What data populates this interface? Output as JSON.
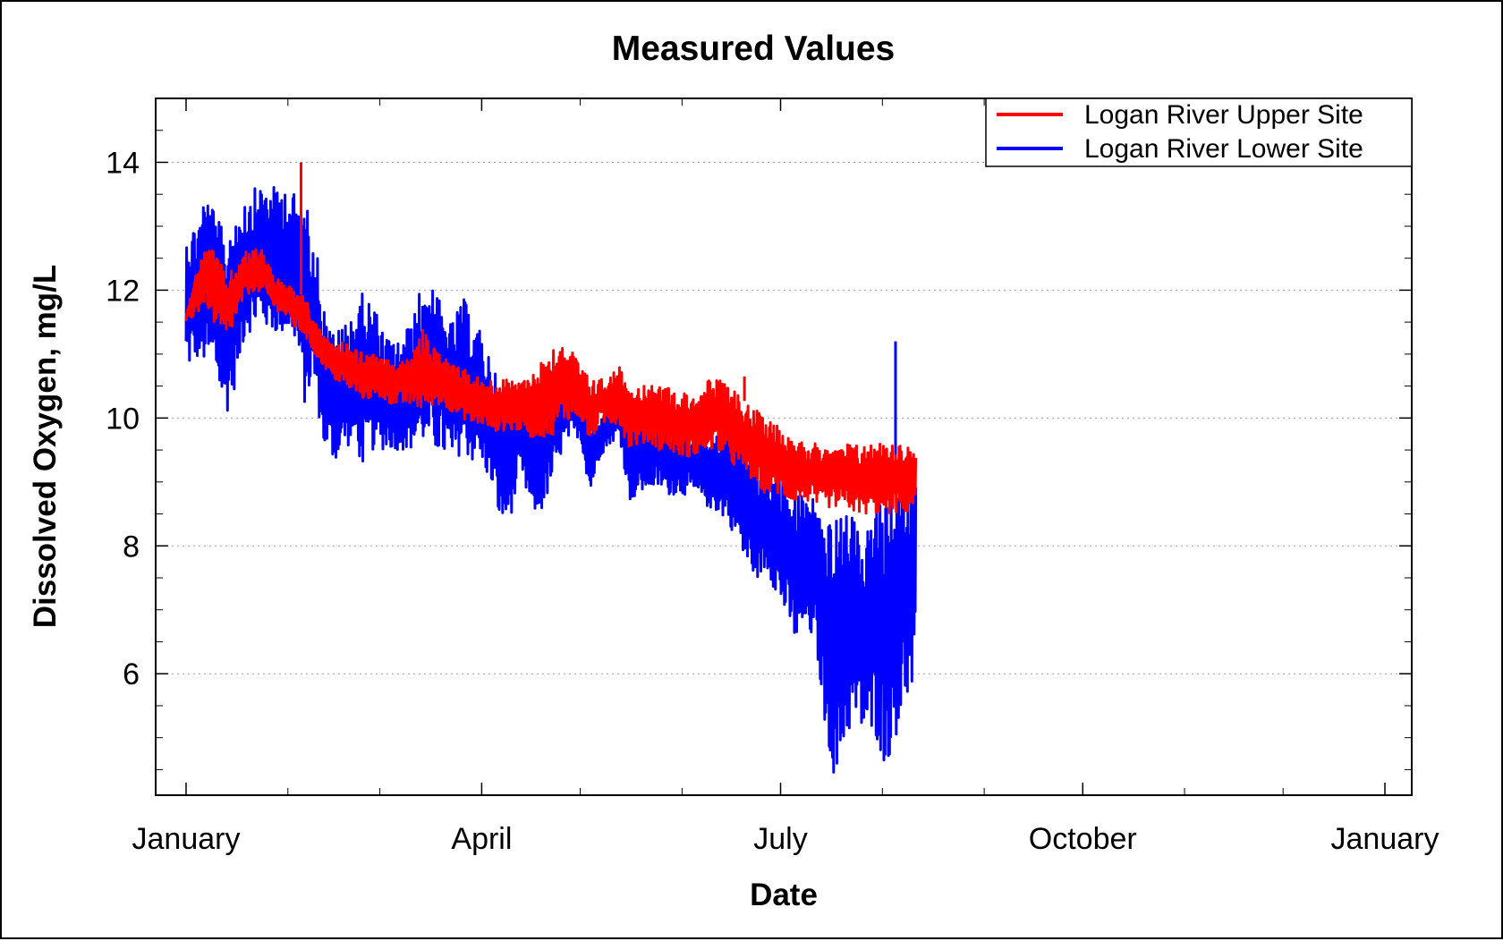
{
  "chart_data": {
    "type": "line",
    "title": "Measured Values",
    "xlabel": "Date",
    "ylabel": "Dissolved Oxygen, mg/L",
    "xlim": [
      "2007-01-01",
      "2008-01-01"
    ],
    "ylim": [
      4.1,
      15.0
    ],
    "x_ticks": [
      {
        "date": "2007-01-01",
        "label": "January"
      },
      {
        "date": "2007-04-01",
        "label": "April"
      },
      {
        "date": "2007-07-01",
        "label": "July"
      },
      {
        "date": "2007-10-01",
        "label": "October"
      },
      {
        "date": "2008-01-01",
        "label": "January"
      }
    ],
    "x_minor_ticks": [
      "2007-02-01",
      "2007-03-01",
      "2007-05-01",
      "2007-06-01",
      "2007-08-01",
      "2007-09-01",
      "2007-11-01",
      "2007-12-01"
    ],
    "y_ticks": [
      6,
      8,
      10,
      12,
      14
    ],
    "y_minor_step": 0.5,
    "grid": "horizontal dotted",
    "legend_position": "top-right",
    "series": [
      {
        "name": "Logan River Upper Site",
        "color": "#ff0000",
        "x": [
          "2007-01-01",
          "2007-01-04",
          "2007-01-07",
          "2007-01-10",
          "2007-01-13",
          "2007-01-16",
          "2007-01-19",
          "2007-01-22",
          "2007-01-25",
          "2007-01-28",
          "2007-01-31",
          "2007-02-03",
          "2007-02-06",
          "2007-02-09",
          "2007-02-12",
          "2007-02-15",
          "2007-02-18",
          "2007-02-21",
          "2007-02-24",
          "2007-02-27",
          "2007-03-02",
          "2007-03-05",
          "2007-03-08",
          "2007-03-11",
          "2007-03-14",
          "2007-03-17",
          "2007-03-20",
          "2007-03-23",
          "2007-03-26",
          "2007-03-29",
          "2007-04-01",
          "2007-04-04",
          "2007-04-07",
          "2007-04-10",
          "2007-04-13",
          "2007-04-16",
          "2007-04-19",
          "2007-04-22",
          "2007-04-25",
          "2007-04-28",
          "2007-05-01",
          "2007-05-04",
          "2007-05-07",
          "2007-05-10",
          "2007-05-13",
          "2007-05-16",
          "2007-05-19",
          "2007-05-22",
          "2007-05-25",
          "2007-05-28",
          "2007-05-31",
          "2007-06-03",
          "2007-06-06",
          "2007-06-09",
          "2007-06-12",
          "2007-06-15",
          "2007-06-18",
          "2007-06-21",
          "2007-06-24",
          "2007-06-27",
          "2007-06-30",
          "2007-07-03",
          "2007-07-06",
          "2007-07-09",
          "2007-07-12",
          "2007-07-15",
          "2007-07-18",
          "2007-07-21",
          "2007-07-24",
          "2007-07-27",
          "2007-07-30",
          "2007-08-02",
          "2007-08-05",
          "2007-08-08",
          "2007-08-11"
        ],
        "low": [
          11.5,
          11.6,
          11.8,
          11.4,
          11.2,
          11.5,
          11.9,
          12.0,
          11.9,
          11.7,
          11.6,
          11.4,
          11.3,
          11.0,
          10.8,
          10.6,
          10.5,
          10.4,
          10.3,
          10.3,
          10.3,
          10.2,
          10.2,
          10.2,
          10.1,
          10.2,
          10.2,
          10.1,
          10.0,
          9.9,
          9.9,
          9.8,
          9.8,
          9.8,
          9.8,
          9.7,
          9.7,
          9.7,
          9.9,
          10.0,
          10.0,
          9.6,
          9.9,
          9.9,
          9.9,
          9.5,
          9.6,
          9.6,
          9.5,
          9.5,
          9.4,
          9.4,
          9.4,
          9.5,
          9.5,
          9.3,
          9.2,
          9.1,
          8.9,
          8.8,
          8.8,
          8.7,
          8.7,
          8.7,
          8.6,
          8.6,
          8.6,
          8.6,
          8.5,
          8.5,
          8.5,
          8.5,
          8.5,
          8.5,
          8.6
        ],
        "high": [
          11.7,
          12.3,
          12.7,
          12.6,
          12.2,
          12.4,
          12.6,
          12.7,
          12.6,
          12.2,
          12.1,
          12.0,
          11.9,
          11.5,
          11.3,
          11.1,
          11.2,
          11.1,
          11.0,
          11.0,
          10.9,
          10.9,
          10.9,
          11.0,
          11.4,
          11.1,
          11.0,
          10.9,
          10.8,
          10.7,
          10.6,
          10.6,
          10.6,
          10.6,
          10.6,
          10.7,
          10.9,
          11.1,
          11.2,
          11.1,
          10.8,
          10.6,
          10.6,
          10.7,
          10.8,
          10.6,
          10.5,
          10.5,
          10.5,
          10.5,
          10.4,
          10.4,
          10.4,
          10.6,
          10.6,
          10.5,
          10.4,
          10.2,
          10.1,
          10.0,
          9.9,
          9.8,
          9.7,
          9.6,
          9.6,
          9.6,
          9.5,
          9.6,
          9.6,
          9.6,
          9.6,
          9.7,
          9.6,
          9.6,
          9.5
        ],
        "spikes": [
          {
            "x": "2007-02-05",
            "y": 14.0
          },
          {
            "x": "2007-06-20",
            "y": 10.65
          }
        ]
      },
      {
        "name": "Logan River Lower Site",
        "color": "#0000ff",
        "x": [
          "2007-01-01",
          "2007-01-04",
          "2007-01-07",
          "2007-01-10",
          "2007-01-13",
          "2007-01-16",
          "2007-01-19",
          "2007-01-22",
          "2007-01-25",
          "2007-01-28",
          "2007-01-31",
          "2007-02-03",
          "2007-02-06",
          "2007-02-09",
          "2007-02-12",
          "2007-02-15",
          "2007-02-18",
          "2007-02-21",
          "2007-02-24",
          "2007-02-27",
          "2007-03-02",
          "2007-03-05",
          "2007-03-08",
          "2007-03-11",
          "2007-03-14",
          "2007-03-17",
          "2007-03-20",
          "2007-03-23",
          "2007-03-26",
          "2007-03-29",
          "2007-04-01",
          "2007-04-04",
          "2007-04-07",
          "2007-04-10",
          "2007-04-13",
          "2007-04-16",
          "2007-04-19",
          "2007-04-22",
          "2007-04-25",
          "2007-04-28",
          "2007-05-01",
          "2007-05-04",
          "2007-05-07",
          "2007-05-10",
          "2007-05-13",
          "2007-05-16",
          "2007-05-19",
          "2007-05-22",
          "2007-05-25",
          "2007-05-28",
          "2007-05-31",
          "2007-06-03",
          "2007-06-06",
          "2007-06-09",
          "2007-06-12",
          "2007-06-15",
          "2007-06-18",
          "2007-06-21",
          "2007-06-24",
          "2007-06-27",
          "2007-06-30",
          "2007-07-03",
          "2007-07-06",
          "2007-07-09",
          "2007-07-12",
          "2007-07-15",
          "2007-07-18",
          "2007-07-21",
          "2007-07-24",
          "2007-07-27",
          "2007-07-30",
          "2007-08-02",
          "2007-08-05",
          "2007-08-08",
          "2007-08-11"
        ],
        "low": [
          10.7,
          10.9,
          10.8,
          10.6,
          10.0,
          10.5,
          11.3,
          11.4,
          11.4,
          11.3,
          11.3,
          11.2,
          10.2,
          10.5,
          9.5,
          9.3,
          9.5,
          9.6,
          9.2,
          9.5,
          9.5,
          9.5,
          9.5,
          9.5,
          9.6,
          9.5,
          9.4,
          9.2,
          9.5,
          9.3,
          9.3,
          8.9,
          8.3,
          8.5,
          9.1,
          8.5,
          8.5,
          8.9,
          9.4,
          9.7,
          9.7,
          8.8,
          9.4,
          9.6,
          9.7,
          8.7,
          8.8,
          8.9,
          8.9,
          8.8,
          8.8,
          8.8,
          8.7,
          8.6,
          8.5,
          8.4,
          8.0,
          7.6,
          7.5,
          7.6,
          7.2,
          6.8,
          6.4,
          6.7,
          6.3,
          5.0,
          4.2,
          5.0,
          5.2,
          4.9,
          5.0,
          4.5,
          5.0,
          5.5,
          5.7
        ],
        "high": [
          12.9,
          13.1,
          13.6,
          13.2,
          12.8,
          13.4,
          13.5,
          13.6,
          13.7,
          13.6,
          13.7,
          13.5,
          13.4,
          12.9,
          11.7,
          11.3,
          11.5,
          11.7,
          12.0,
          11.8,
          11.3,
          11.2,
          11.3,
          11.6,
          12.2,
          12.1,
          11.7,
          11.5,
          11.9,
          11.6,
          11.3,
          10.9,
          10.3,
          10.4,
          10.6,
          10.3,
          10.4,
          10.6,
          10.8,
          10.7,
          10.3,
          9.9,
          10.0,
          10.3,
          10.5,
          9.9,
          10.0,
          10.0,
          10.0,
          9.9,
          9.9,
          9.9,
          9.8,
          9.8,
          9.7,
          9.9,
          10.0,
          9.6,
          9.3,
          9.2,
          9.2,
          8.9,
          8.8,
          8.9,
          8.7,
          8.4,
          8.4,
          8.6,
          8.3,
          8.2,
          8.7,
          8.6,
          8.9,
          9.3,
          9.4
        ],
        "spikes": [
          {
            "x": "2007-08-05",
            "y": 11.2
          }
        ]
      }
    ]
  }
}
